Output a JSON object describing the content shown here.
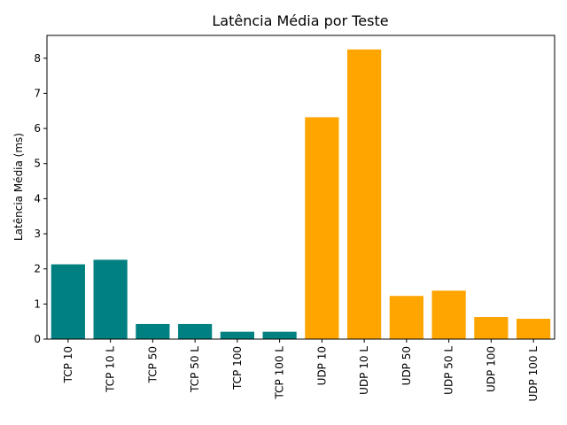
{
  "chart_data": {
    "type": "bar",
    "title": "Latência Média por Teste",
    "xlabel": "",
    "ylabel": "Latência Média (ms)",
    "ylim": [
      0,
      8.65
    ],
    "yticks": [
      0,
      1,
      2,
      3,
      4,
      5,
      6,
      7,
      8
    ],
    "grid": false,
    "categories": [
      "TCP 10",
      "TCP 10 L",
      "TCP 50",
      "TCP 50 L",
      "TCP 100",
      "TCP 100 L",
      "UDP 10",
      "UDP 10 L",
      "UDP 50",
      "UDP 50 L",
      "UDP 100",
      "UDP 100 L"
    ],
    "values": [
      2.13,
      2.26,
      0.43,
      0.43,
      0.21,
      0.21,
      6.32,
      8.25,
      1.23,
      1.38,
      0.63,
      0.58
    ],
    "bar_colors": [
      "#008080",
      "#008080",
      "#008080",
      "#008080",
      "#008080",
      "#008080",
      "#ffa500",
      "#ffa500",
      "#ffa500",
      "#ffa500",
      "#ffa500",
      "#ffa500"
    ]
  }
}
